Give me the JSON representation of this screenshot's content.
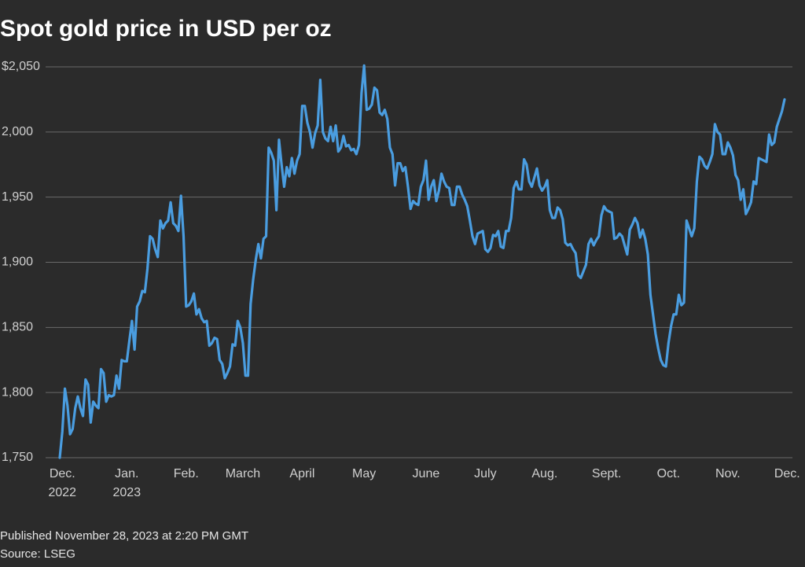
{
  "chart_data": {
    "type": "line",
    "title": "Spot gold price in USD per oz",
    "published": "Published November 28, 2023 at 2:20 PM GMT",
    "source": "Source: LSEG",
    "color": "#4a9de0",
    "grid": true,
    "ylim": [
      1750,
      2050
    ],
    "yticks": [
      {
        "value": 1750,
        "label": "1,750"
      },
      {
        "value": 1800,
        "label": "1,800"
      },
      {
        "value": 1850,
        "label": "1,850"
      },
      {
        "value": 1900,
        "label": "1,900"
      },
      {
        "value": 1950,
        "label": "1,950"
      },
      {
        "value": 2000,
        "label": "2,000"
      },
      {
        "value": 2050,
        "label": "$2,050"
      }
    ],
    "categories": [
      null,
      "Dec. 2022",
      null,
      null,
      null,
      null,
      null,
      null,
      null,
      null,
      null,
      null,
      null,
      null,
      null,
      null,
      null,
      null,
      null,
      null,
      null,
      null,
      null,
      null,
      null,
      null,
      "Jan. 2023",
      null,
      null,
      null,
      null,
      null,
      null,
      null,
      null,
      null,
      null,
      null,
      null,
      null,
      null,
      null,
      null,
      null,
      null,
      null,
      null,
      null,
      null,
      "Feb.",
      null,
      null,
      null,
      null,
      null,
      null,
      null,
      null,
      null,
      null,
      null,
      null,
      null,
      null,
      null,
      null,
      null,
      null,
      null,
      null,
      null,
      "March",
      null,
      null,
      null,
      null,
      null,
      null,
      null,
      null,
      null,
      null,
      null,
      null,
      null,
      null,
      null,
      null,
      null,
      null,
      null,
      null,
      null,
      null,
      "April",
      null,
      null,
      null,
      null,
      null,
      null,
      null,
      null,
      null,
      null,
      null,
      null,
      null,
      null,
      null,
      null,
      null,
      null,
      null,
      null,
      null,
      null,
      null,
      "May",
      null,
      null,
      null,
      null,
      null,
      null,
      null,
      null,
      null,
      null,
      null,
      null,
      null,
      null,
      null,
      null,
      null,
      null,
      null,
      null,
      null,
      null,
      null,
      "June",
      null,
      null,
      null,
      null,
      null,
      null,
      null,
      null,
      null,
      null,
      null,
      null,
      null,
      null,
      null,
      null,
      null,
      null,
      null,
      null,
      null,
      null,
      "July",
      null,
      null,
      null,
      null,
      null,
      null,
      null,
      null,
      null,
      null,
      null,
      null,
      null,
      null,
      null,
      null,
      null,
      null,
      null,
      null,
      null,
      null,
      "Aug.",
      null,
      null,
      null,
      null,
      null,
      null,
      null,
      null,
      null,
      null,
      null,
      null,
      null,
      null,
      null,
      null,
      null,
      null,
      null,
      null,
      null,
      null,
      null,
      "Sept.",
      null,
      null,
      null,
      null,
      null,
      null,
      null,
      null,
      null,
      null,
      null,
      null,
      null,
      null,
      null,
      null,
      null,
      null,
      null,
      null,
      null,
      null,
      null,
      "Oct.",
      null,
      null,
      null,
      null,
      null,
      null,
      null,
      null,
      null,
      null,
      null,
      null,
      null,
      null,
      null,
      null,
      null,
      null,
      null,
      null,
      null,
      null,
      "Nov.",
      null,
      null,
      null,
      null,
      null,
      null,
      null,
      null,
      null,
      null,
      null,
      null,
      null,
      null,
      null,
      null,
      null,
      null,
      null,
      null,
      null,
      null,
      "Dec."
    ],
    "values": [
      1750,
      1770,
      1803,
      1790,
      1768,
      1772,
      1788,
      1797,
      1788,
      1782,
      1810,
      1806,
      1777,
      1793,
      1790,
      1788,
      1818,
      1815,
      1793,
      1798,
      1797,
      1798,
      1813,
      1803,
      1825,
      1824,
      1824,
      1840,
      1855,
      1833,
      1866,
      1870,
      1878,
      1877,
      1895,
      1920,
      1918,
      1910,
      1904,
      1932,
      1926,
      1930,
      1932,
      1946,
      1930,
      1928,
      1924,
      1951,
      1920,
      1866,
      1867,
      1870,
      1876,
      1860,
      1864,
      1857,
      1854,
      1855,
      1836,
      1838,
      1842,
      1841,
      1825,
      1822,
      1811,
      1815,
      1820,
      1837,
      1836,
      1855,
      1850,
      1838,
      1813,
      1813,
      1868,
      1887,
      1902,
      1914,
      1903,
      1918,
      1920,
      1988,
      1984,
      1978,
      1940,
      1994,
      1975,
      1958,
      1973,
      1966,
      1980,
      1968,
      1978,
      1983,
      2020,
      2020,
      2007,
      2000,
      1988,
      1999,
      2005,
      2040,
      2000,
      1995,
      1993,
      2004,
      1993,
      2005,
      1985,
      1988,
      1997,
      1989,
      1990,
      1986,
      1987,
      1983,
      1990,
      2030,
      2051,
      2017,
      2018,
      2021,
      2034,
      2032,
      2015,
      2013,
      2017,
      2010,
      1988,
      1983,
      1959,
      1976,
      1976,
      1970,
      1973,
      1958,
      1941,
      1947,
      1945,
      1944,
      1958,
      1963,
      1978,
      1948,
      1958,
      1963,
      1947,
      1955,
      1968,
      1962,
      1958,
      1957,
      1944,
      1944,
      1958,
      1958,
      1952,
      1948,
      1943,
      1932,
      1920,
      1914,
      1922,
      1923,
      1924,
      1910,
      1908,
      1911,
      1921,
      1920,
      1924,
      1912,
      1911,
      1924,
      1924,
      1934,
      1957,
      1962,
      1956,
      1956,
      1979,
      1975,
      1962,
      1958,
      1965,
      1972,
      1959,
      1955,
      1958,
      1963,
      1940,
      1934,
      1934,
      1942,
      1940,
      1933,
      1915,
      1913,
      1914,
      1910,
      1907,
      1890,
      1888,
      1893,
      1898,
      1914,
      1918,
      1913,
      1917,
      1920,
      1936,
      1943,
      1940,
      1939,
      1938,
      1918,
      1919,
      1922,
      1920,
      1913,
      1906,
      1925,
      1929,
      1934,
      1930,
      1919,
      1925,
      1918,
      1906,
      1875,
      1860,
      1845,
      1834,
      1825,
      1821,
      1820,
      1838,
      1851,
      1860,
      1860,
      1875,
      1867,
      1869,
      1932,
      1926,
      1920,
      1926,
      1962,
      1981,
      1979,
      1974,
      1972,
      1977,
      1983,
      2006,
      2000,
      1998,
      1983,
      1983,
      1992,
      1988,
      1982,
      1967,
      1963,
      1948,
      1956,
      1937,
      1941,
      1946,
      1962,
      1960,
      1980,
      1979,
      1978,
      1977,
      1998,
      1990,
      1992,
      2004,
      2010,
      2016,
      2025,
      null
    ]
  }
}
